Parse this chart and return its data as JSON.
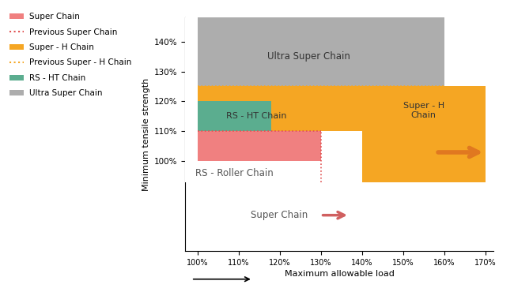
{
  "xlabel": "Maximum allowable load",
  "ylabel": "Minimum tensile strength",
  "xlim": [
    97,
    172
  ],
  "ylim": [
    93,
    148
  ],
  "xticks": [
    100,
    110,
    120,
    130,
    140,
    150,
    160,
    170
  ],
  "yticks": [
    100,
    110,
    120,
    130,
    140
  ],
  "colors": {
    "super_chain": "#F08080",
    "super_h_chain": "#F5A623",
    "ultra_super_chain": "#ADADAD",
    "rs_ht_chain": "#5BAD8F",
    "prev_super_chain_line": "#E05050",
    "prev_super_h_chain_line": "#F5A623",
    "arrow_super_chain": "#D06060",
    "arrow_super_h_chain": "#E07820",
    "white": "#FFFFFF"
  },
  "legend_items": [
    {
      "label": "Super Chain",
      "type": "patch",
      "color": "#F08080"
    },
    {
      "label": "Previous Super Chain",
      "type": "line",
      "color": "#E05050"
    },
    {
      "label": "Super - H Chain",
      "type": "patch",
      "color": "#F5A623"
    },
    {
      "label": "Previous Super - H Chain",
      "type": "line",
      "color": "#F5A623"
    },
    {
      "label": "RS - HT Chain",
      "type": "patch",
      "color": "#5BAD8F"
    },
    {
      "label": "Ultra Super Chain",
      "type": "patch",
      "color": "#ADADAD"
    }
  ]
}
